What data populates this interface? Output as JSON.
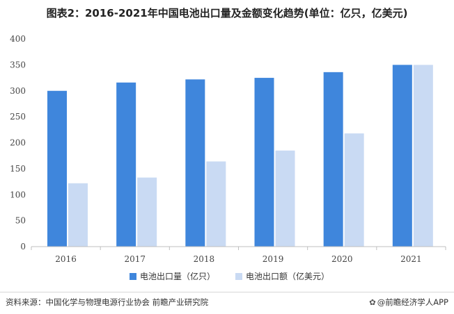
{
  "title": "图表2：2016-2021年中国电池出口量及金额变化趋势(单位：亿只，亿美元)",
  "colors": {
    "series1": "#3f86dc",
    "series2": "#c9daf3",
    "axis": "#bfbfbf",
    "tick_text": "#444444"
  },
  "chart_data": {
    "type": "bar",
    "categories": [
      "2016",
      "2017",
      "2018",
      "2019",
      "2020",
      "2021"
    ],
    "series": [
      {
        "name": "电池出口量（亿只）",
        "values": [
          300,
          316,
          322,
          325,
          336,
          350
        ]
      },
      {
        "name": "电池出口额（亿美元）",
        "values": [
          122,
          133,
          164,
          185,
          218,
          350
        ]
      }
    ],
    "ylim": [
      0,
      400
    ],
    "yticks": [
      0,
      50,
      100,
      150,
      200,
      250,
      300,
      350,
      400
    ],
    "grid": false,
    "legend": "bottom-center"
  },
  "footer": {
    "source": "资料来源：中国化学与物理电源行业协会 前瞻产业研究院",
    "brand": "@前瞻经济学人APP",
    "brand_icon": "paw-icon"
  }
}
